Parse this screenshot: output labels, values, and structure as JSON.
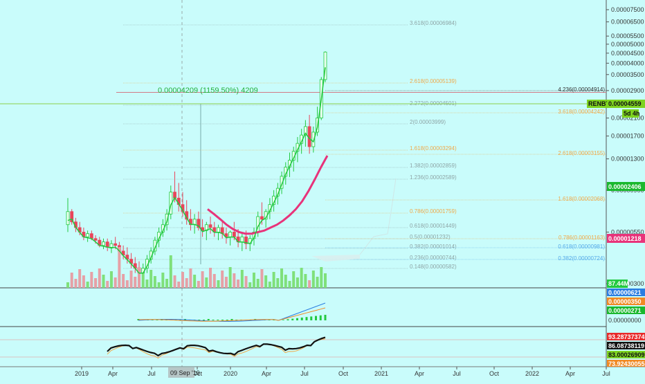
{
  "symbol_label": "RENBTC",
  "price_badge_time": "5d 4h",
  "crosshair_date": "09 Sep '19",
  "measure_label": "0.00004209 (1159.50%) 4209",
  "colors": {
    "background": "#c9fcfb",
    "up": "#22c93f",
    "down": "#e8455a",
    "ema": "#e8337a",
    "fib_primary": "#f0a94a",
    "fib_secondary": "#8ea5a6",
    "fib_blue": "#55a9e8"
  },
  "price_axis_ticks": [
    "0.00007500",
    "0.00006500",
    "0.00005500",
    "0.00005000",
    "0.00004500",
    "0.00004000",
    "0.00003500",
    "0.00002900",
    "0.00002500",
    "0.00002100",
    "0.00001700",
    "0.00001300",
    "0.00000900",
    "0.00000550",
    "0.00000300"
  ],
  "time_axis_ticks": [
    "2019",
    "Apr",
    "Jul",
    "Oct",
    "2020",
    "Apr",
    "Jul",
    "Oct",
    "2021",
    "Apr",
    "Jul",
    "Oct",
    "2022",
    "Apr",
    "Jul"
  ],
  "fib_levels_main": [
    {
      "text": "3.618(0.00006984)"
    },
    {
      "text": "2.618(0.00005139)"
    },
    {
      "text": "2.272(0.00004501)"
    },
    {
      "text": "2(0.00003999)"
    },
    {
      "text": "1.618(0.00003294)"
    },
    {
      "text": "1.382(0.00002859)"
    },
    {
      "text": "1.236(0.00002589)"
    },
    {
      "text": "0.786(0.00001759)"
    },
    {
      "text": "0.618(0.00001449)"
    },
    {
      "text": "0.5(0.00001232)"
    },
    {
      "text": "0.382(0.00001014)"
    },
    {
      "text": "0.236(0.00000744)"
    },
    {
      "text": "0.148(0.00000582)"
    }
  ],
  "fib_levels_right": [
    {
      "text": "4.236(0.00004914)"
    },
    {
      "text": "3.618(0.00004242)"
    },
    {
      "text": "2.618(0.00003155)"
    },
    {
      "text": "1.618(0.00002068)"
    },
    {
      "text": "0.786(0.00001163)"
    },
    {
      "text": "0.618(0.00000981)"
    },
    {
      "text": "0.382(0.00000724)"
    }
  ],
  "price_badges": [
    {
      "text": "RENBTC"
    },
    {
      "text": "0.00004559"
    },
    {
      "text": "0.00002406"
    },
    {
      "text": "0.00001218"
    }
  ],
  "volume_badge": "87.44M",
  "macd_badges": [
    "0.00000621",
    "0.00000350",
    "0.00000271",
    "0.00000000"
  ],
  "rsi_badges": [
    "93.28737374",
    "86.08738119",
    "83.00026909",
    "73.92430055"
  ],
  "chart_data": {
    "type": "candlestick",
    "symbol": "RENBTC",
    "last_price": 4.559e-05,
    "time_range": [
      "2019-01",
      "2020-08"
    ],
    "annotations": {
      "measure": "0.00004209 (1159.50%) 4209",
      "crosshair_date": "09 Sep '19"
    },
    "candles_weekly": [
      {
        "o": 6e-06,
        "h": 8.2e-06,
        "l": 5.5e-06,
        "c": 7e-06
      },
      {
        "o": 7e-06,
        "h": 7.2e-06,
        "l": 6e-06,
        "c": 6.2e-06
      },
      {
        "o": 6.2e-06,
        "h": 6.5e-06,
        "l": 5.5e-06,
        "c": 5.8e-06
      },
      {
        "o": 5.8e-06,
        "h": 6.2e-06,
        "l": 5.3e-06,
        "c": 5.5e-06
      },
      {
        "o": 5.5e-06,
        "h": 5.8e-06,
        "l": 5e-06,
        "c": 5.2e-06
      },
      {
        "o": 5.2e-06,
        "h": 5.6e-06,
        "l": 4.9e-06,
        "c": 5.4e-06
      },
      {
        "o": 5.4e-06,
        "h": 5.6e-06,
        "l": 5e-06,
        "c": 5.1e-06
      },
      {
        "o": 5.1e-06,
        "h": 5.3e-06,
        "l": 4.8e-06,
        "c": 5e-06
      },
      {
        "o": 5e-06,
        "h": 5.2e-06,
        "l": 4.6e-06,
        "c": 4.7e-06
      },
      {
        "o": 4.7e-06,
        "h": 5.1e-06,
        "l": 4.5e-06,
        "c": 4.9e-06
      },
      {
        "o": 4.9e-06,
        "h": 5.1e-06,
        "l": 4.4e-06,
        "c": 4.6e-06
      },
      {
        "o": 4.6e-06,
        "h": 5e-06,
        "l": 4.3e-06,
        "c": 4.8e-06
      },
      {
        "o": 4.8e-06,
        "h": 5.2e-06,
        "l": 4.5e-06,
        "c": 4.7e-06
      },
      {
        "o": 4.7e-06,
        "h": 4.9e-06,
        "l": 4.2e-06,
        "c": 4.4e-06
      },
      {
        "o": 4.4e-06,
        "h": 4.7e-06,
        "l": 4e-06,
        "c": 4.2e-06
      },
      {
        "o": 4.2e-06,
        "h": 4.6e-06,
        "l": 3.8e-06,
        "c": 4e-06
      },
      {
        "o": 4e-06,
        "h": 4.3e-06,
        "l": 3.6e-06,
        "c": 3.8e-06
      },
      {
        "o": 3.8e-06,
        "h": 4.1e-06,
        "l": 3.4e-06,
        "c": 3.6e-06
      },
      {
        "o": 3.6e-06,
        "h": 3.9e-06,
        "l": 3.2e-06,
        "c": 3.4e-06
      },
      {
        "o": 3.4e-06,
        "h": 3.8e-06,
        "l": 3.1e-06,
        "c": 3.6e-06
      },
      {
        "o": 3.6e-06,
        "h": 4.2e-06,
        "l": 3.4e-06,
        "c": 4e-06
      },
      {
        "o": 4e-06,
        "h": 4.6e-06,
        "l": 3.8e-06,
        "c": 4.4e-06
      },
      {
        "o": 4.4e-06,
        "h": 5.2e-06,
        "l": 4.2e-06,
        "c": 5e-06
      },
      {
        "o": 5e-06,
        "h": 5.8e-06,
        "l": 4.6e-06,
        "c": 5.5e-06
      },
      {
        "o": 5.5e-06,
        "h": 6.4e-06,
        "l": 5.2e-06,
        "c": 6e-06
      },
      {
        "o": 6e-06,
        "h": 7.2e-06,
        "l": 5.6e-06,
        "c": 6.8e-06
      },
      {
        "o": 6.8e-06,
        "h": 9.5e-06,
        "l": 6.4e-06,
        "c": 8.8e-06
      },
      {
        "o": 8.8e-06,
        "h": 1.12e-05,
        "l": 7.8e-06,
        "c": 8.2e-06
      },
      {
        "o": 8.2e-06,
        "h": 9.8e-06,
        "l": 7e-06,
        "c": 7.6e-06
      },
      {
        "o": 7.6e-06,
        "h": 8.8e-06,
        "l": 6.6e-06,
        "c": 7e-06
      },
      {
        "o": 7e-06,
        "h": 8e-06,
        "l": 6e-06,
        "c": 6.4e-06
      },
      {
        "o": 6.4e-06,
        "h": 7.2e-06,
        "l": 5.6e-06,
        "c": 6e-06
      },
      {
        "o": 6e-06,
        "h": 6.8e-06,
        "l": 5.4e-06,
        "c": 6.4e-06
      },
      {
        "o": 6.4e-06,
        "h": 7e-06,
        "l": 5.6e-06,
        "c": 5.8e-06
      },
      {
        "o": 5.8e-06,
        "h": 6.4e-06,
        "l": 5.2e-06,
        "c": 5.6e-06
      },
      {
        "o": 5.6e-06,
        "h": 6.2e-06,
        "l": 5e-06,
        "c": 6e-06
      },
      {
        "o": 6e-06,
        "h": 6.6e-06,
        "l": 5.4e-06,
        "c": 5.8e-06
      },
      {
        "o": 5.8e-06,
        "h": 6.2e-06,
        "l": 5.2e-06,
        "c": 5.5e-06
      },
      {
        "o": 5.5e-06,
        "h": 6e-06,
        "l": 5e-06,
        "c": 5.8e-06
      },
      {
        "o": 5.8e-06,
        "h": 6.2e-06,
        "l": 5.1e-06,
        "c": 5.4e-06
      },
      {
        "o": 5.4e-06,
        "h": 5.8e-06,
        "l": 4.8e-06,
        "c": 5.2e-06
      },
      {
        "o": 5.2e-06,
        "h": 5.6e-06,
        "l": 4.7e-06,
        "c": 5.5e-06
      },
      {
        "o": 5.5e-06,
        "h": 6.2e-06,
        "l": 5e-06,
        "c": 5.2e-06
      },
      {
        "o": 5.2e-06,
        "h": 5.7e-06,
        "l": 4.6e-06,
        "c": 4.9e-06
      },
      {
        "o": 4.9e-06,
        "h": 5.4e-06,
        "l": 4.4e-06,
        "c": 5.2e-06
      },
      {
        "o": 5.2e-06,
        "h": 5.6e-06,
        "l": 4.5e-06,
        "c": 4.8e-06
      },
      {
        "o": 4.8e-06,
        "h": 5.3e-06,
        "l": 4.4e-06,
        "c": 5.1e-06
      },
      {
        "o": 5.1e-06,
        "h": 5.8e-06,
        "l": 4.7e-06,
        "c": 5.5e-06
      },
      {
        "o": 5.5e-06,
        "h": 7e-06,
        "l": 5.2e-06,
        "c": 6.6e-06
      },
      {
        "o": 6.6e-06,
        "h": 7.8e-06,
        "l": 6e-06,
        "c": 6.4e-06
      },
      {
        "o": 6.4e-06,
        "h": 7.2e-06,
        "l": 5.8e-06,
        "c": 7e-06
      },
      {
        "o": 7e-06,
        "h": 8.2e-06,
        "l": 6.4e-06,
        "c": 7.6e-06
      },
      {
        "o": 7.6e-06,
        "h": 9e-06,
        "l": 7e-06,
        "c": 8.4e-06
      },
      {
        "o": 8.4e-06,
        "h": 9.8e-06,
        "l": 7.6e-06,
        "c": 9.2e-06
      },
      {
        "o": 9.2e-06,
        "h": 1.12e-05,
        "l": 8.6e-06,
        "c": 1.06e-05
      },
      {
        "o": 1.06e-05,
        "h": 1.25e-05,
        "l": 9.6e-06,
        "c": 1.18e-05
      },
      {
        "o": 1.18e-05,
        "h": 1.4e-05,
        "l": 1.05e-05,
        "c": 1.28e-05
      },
      {
        "o": 1.28e-05,
        "h": 1.5e-05,
        "l": 1.12e-05,
        "c": 1.42e-05
      },
      {
        "o": 1.42e-05,
        "h": 1.68e-05,
        "l": 1.25e-05,
        "c": 1.56e-05
      },
      {
        "o": 1.56e-05,
        "h": 1.85e-05,
        "l": 1.38e-05,
        "c": 1.72e-05
      },
      {
        "o": 1.72e-05,
        "h": 2.05e-05,
        "l": 1.5e-05,
        "c": 1.9e-05
      },
      {
        "o": 1.9e-05,
        "h": 2.18e-05,
        "l": 1.38e-05,
        "c": 1.5e-05
      },
      {
        "o": 1.5e-05,
        "h": 1.9e-05,
        "l": 1.4e-05,
        "c": 1.78e-05
      },
      {
        "o": 1.78e-05,
        "h": 2.4e-05,
        "l": 1.7e-05,
        "c": 2.1e-05
      },
      {
        "o": 2.1e-05,
        "h": 3.4e-05,
        "l": 2.05e-05,
        "c": 3.3e-05
      },
      {
        "o": 3.3e-05,
        "h": 4.6e-05,
        "l": 3.2e-05,
        "c": 4.56e-05
      }
    ],
    "ema_line": [
      7.2e-06,
      6.8e-06,
      6.4e-06,
      6e-06,
      5.7e-06,
      5.5e-06,
      5.4e-06,
      5.4e-06,
      5.5e-06,
      5.6e-06,
      5.8e-06,
      6e-06,
      6.3e-06,
      6.7e-06,
      7.2e-06,
      7.9e-06,
      8.9e-06,
      1.02e-05,
      1.18e-05,
      1.35e-05
    ],
    "volume_axis_badge": "87.44M",
    "macd_values": [
      "0.00000621",
      "0.00000350",
      "0.00000271",
      "0.00000000"
    ],
    "rsi_values": [
      "93.28737374",
      "86.08738119",
      "83.00026909",
      "73.92430055"
    ]
  }
}
